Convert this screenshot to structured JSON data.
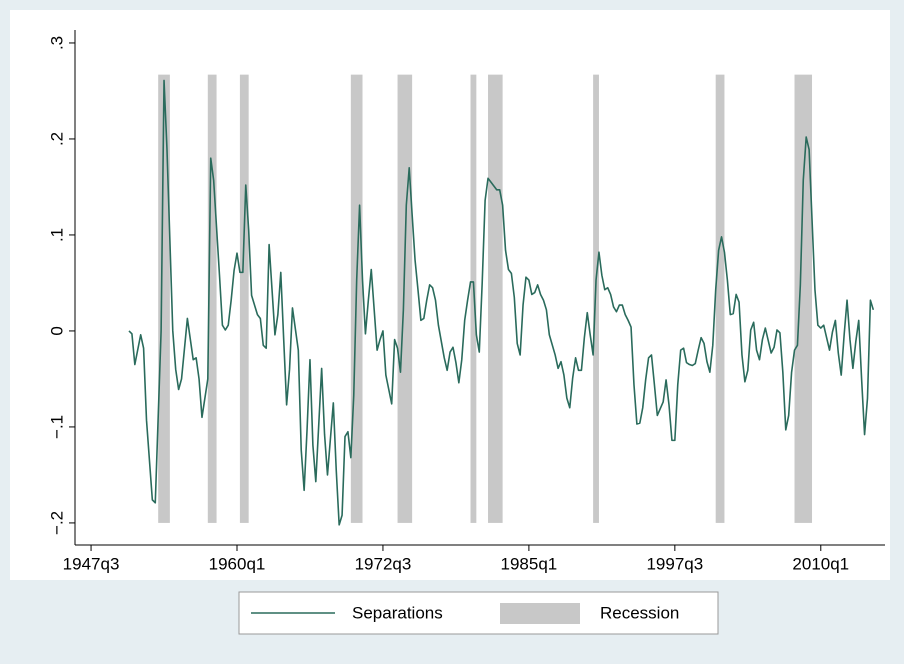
{
  "chart_data": {
    "type": "line",
    "xlim": [
      -55.5,
      222
    ],
    "ylim": [
      -0.223,
      0.3135
    ],
    "xticks": [
      {
        "value": -50,
        "label": "1947q3"
      },
      {
        "value": 0,
        "label": "1960q1"
      },
      {
        "value": 50,
        "label": "1972q3"
      },
      {
        "value": 100,
        "label": "1985q1"
      },
      {
        "value": 150,
        "label": "1997q3"
      },
      {
        "value": 200,
        "label": "2010q1"
      }
    ],
    "yticks": [
      {
        "value": -0.2,
        "label": "−.2"
      },
      {
        "value": -0.1,
        "label": "−.1"
      },
      0,
      {
        "value": 0.1,
        "label": ".1"
      },
      {
        "value": 0.2,
        "label": ".2"
      },
      {
        "value": 0.3,
        "label": ".3"
      }
    ],
    "series": [
      {
        "name": "Separations",
        "type": "line",
        "color": "#2a6b5c",
        "x": [
          -37,
          -36,
          -35,
          -33,
          -32,
          -31,
          -29,
          -28,
          -26,
          -25,
          -24,
          -22,
          -21,
          -20,
          -19,
          -17,
          -15,
          -14,
          -13,
          -12,
          -10,
          -9,
          -8,
          -6,
          -5,
          -4,
          -3,
          -2,
          -1,
          0,
          1,
          2,
          3,
          4,
          5,
          7,
          8,
          9,
          10,
          11,
          12,
          13,
          14,
          15,
          16,
          17,
          18,
          19,
          21,
          22,
          23,
          24,
          25,
          26,
          27,
          29,
          30,
          31,
          33,
          34,
          35,
          36,
          37,
          38,
          39,
          40,
          41,
          42,
          43,
          44,
          45,
          46,
          47,
          48,
          49,
          50,
          51,
          53,
          54,
          55,
          56,
          57,
          58,
          59,
          60,
          61,
          62,
          63,
          64,
          65,
          66,
          67,
          68,
          69,
          71,
          72,
          73,
          74,
          75,
          76,
          77,
          78,
          79,
          80,
          81,
          82,
          83,
          84,
          85,
          86,
          87,
          89,
          90,
          91,
          92,
          93,
          94,
          95,
          96,
          97,
          98,
          99,
          100,
          101,
          102,
          103,
          104,
          105,
          106,
          107,
          109,
          110,
          111,
          112,
          113,
          114,
          115,
          116,
          117,
          118,
          119,
          120,
          121,
          122,
          123,
          124,
          125,
          126,
          127,
          128,
          129,
          130,
          131,
          132,
          133,
          134,
          135,
          136,
          137,
          138,
          139,
          140,
          141,
          142,
          143,
          144,
          146,
          147,
          148,
          149,
          150,
          151,
          152,
          153,
          154,
          155,
          156,
          157,
          158,
          159,
          160,
          161,
          162,
          163,
          164,
          165,
          166,
          167,
          168,
          169,
          170,
          171,
          172,
          173,
          174,
          175,
          176,
          177,
          178,
          179,
          180,
          181,
          183,
          184,
          185,
          186,
          187,
          188,
          189,
          190,
          191,
          192,
          193,
          194,
          195,
          196,
          197,
          198,
          199,
          200,
          201,
          202,
          203,
          204,
          205,
          206,
          207,
          208,
          209,
          210,
          211,
          212,
          213,
          214,
          215,
          216,
          217,
          218
        ],
        "values": [
          0,
          -0.003,
          -0.035,
          -0.004,
          -0.018,
          -0.093,
          -0.176,
          -0.179,
          0,
          0.261,
          0.19,
          0,
          -0.04,
          -0.061,
          -0.05,
          0.013,
          -0.03,
          -0.028,
          -0.05,
          -0.09,
          -0.05,
          0.18,
          0.157,
          0.058,
          0.006,
          0.001,
          0.006,
          0.032,
          0.063,
          0.081,
          0.061,
          0.061,
          0.152,
          0.105,
          0.037,
          0.017,
          0.013,
          -0.015,
          -0.018,
          0.09,
          0.043,
          -0.004,
          0.017,
          0.061,
          -0.009,
          -0.077,
          -0.04,
          0.024,
          -0.02,
          -0.124,
          -0.166,
          -0.103,
          -0.03,
          -0.119,
          -0.157,
          -0.039,
          -0.108,
          -0.15,
          -0.075,
          -0.145,
          -0.202,
          -0.192,
          -0.11,
          -0.105,
          -0.132,
          -0.067,
          0.053,
          0.131,
          0.053,
          -0.003,
          0.032,
          0.064,
          0.022,
          -0.02,
          -0.009,
          0,
          -0.046,
          -0.076,
          -0.009,
          -0.018,
          -0.043,
          0.022,
          0.131,
          0.17,
          0.121,
          0.074,
          0.043,
          0.011,
          0.013,
          0.032,
          0.048,
          0.045,
          0.032,
          0.006,
          -0.028,
          -0.041,
          -0.022,
          -0.017,
          -0.033,
          -0.054,
          -0.03,
          0.011,
          0.032,
          0.051,
          0.051,
          -0.004,
          -0.022,
          0.05,
          0.136,
          0.159,
          0.155,
          0.147,
          0.147,
          0.131,
          0.084,
          0.064,
          0.06,
          0.035,
          -0.013,
          -0.025,
          0.027,
          0.056,
          0.053,
          0.038,
          0.04,
          0.048,
          0.038,
          0.032,
          0.022,
          -0.004,
          -0.025,
          -0.039,
          -0.032,
          -0.046,
          -0.07,
          -0.08,
          -0.049,
          -0.028,
          -0.041,
          -0.041,
          -0.007,
          0.019,
          -0.004,
          -0.025,
          0.053,
          0.082,
          0.058,
          0.043,
          0.045,
          0.038,
          0.025,
          0.02,
          0.027,
          0.027,
          0.017,
          0.011,
          0.004,
          -0.056,
          -0.097,
          -0.096,
          -0.08,
          -0.051,
          -0.028,
          -0.025,
          -0.056,
          -0.088,
          -0.074,
          -0.051,
          -0.077,
          -0.114,
          -0.114,
          -0.056,
          -0.02,
          -0.018,
          -0.033,
          -0.035,
          -0.036,
          -0.034,
          -0.02,
          -0.007,
          -0.013,
          -0.032,
          -0.043,
          -0.015,
          0.043,
          0.084,
          0.098,
          0.082,
          0.053,
          0.017,
          0.018,
          0.038,
          0.03,
          -0.025,
          -0.053,
          -0.041,
          0.001,
          0.009,
          -0.02,
          -0.03,
          -0.009,
          0.003,
          -0.023,
          -0.017,
          0.001,
          -0.002,
          -0.043,
          -0.103,
          -0.088,
          -0.043,
          -0.02,
          -0.015,
          0.048,
          0.157,
          0.202,
          0.189,
          0.116,
          0.043,
          0.006,
          0.003,
          0.006,
          -0.007,
          -0.02,
          -0.001,
          0.011,
          -0.023,
          -0.046,
          -0.004,
          0.032,
          -0.009,
          -0.039,
          -0.011,
          0.011,
          -0.051,
          -0.108,
          -0.07,
          0.032,
          0.022
        ]
      },
      {
        "name": "Recession",
        "type": "band",
        "color": "#c8c8c8",
        "intervals": [
          [
            -27,
            -23
          ],
          [
            -10,
            -7
          ],
          [
            1,
            4
          ],
          [
            39,
            43
          ],
          [
            55,
            60
          ],
          [
            80,
            82
          ],
          [
            86,
            91
          ],
          [
            122,
            124
          ],
          [
            164,
            167
          ],
          [
            191,
            197
          ]
        ],
        "ymin": -0.2,
        "ymax": 0.267
      }
    ],
    "legend": "bottom"
  }
}
